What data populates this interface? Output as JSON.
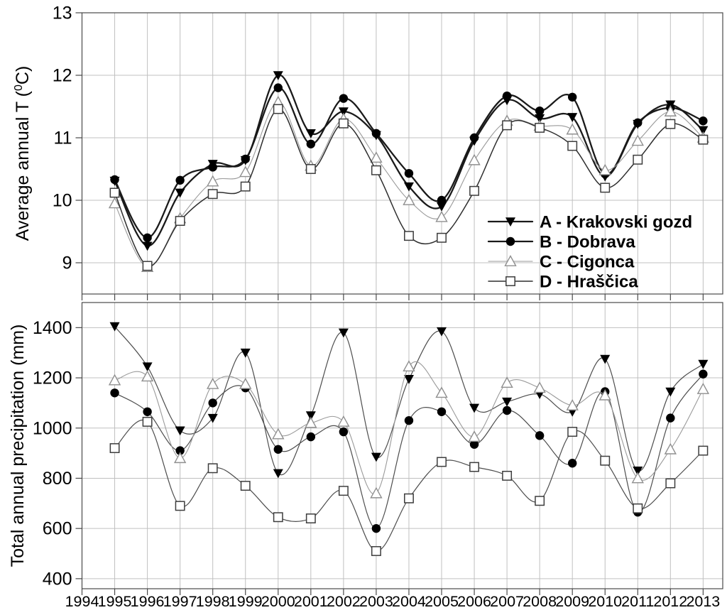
{
  "figure": {
    "description": "Two stacked climate panels: average annual temperature and total annual precipitation for four forest sites, 1995-2013",
    "colors": {
      "background": "#ffffff",
      "text": "#000000",
      "grid": "#c0c0c0",
      "frame": "#4a4a4a",
      "black_marker": "#000000",
      "thick_line": "#1a1a1a",
      "medium_line": "#2e2e2e",
      "thin_line": "#4d4d4d",
      "gray_line": "#9a9a9a",
      "open_marker_fill": "#ffffff",
      "square_stroke": "#3d3d3d",
      "triangle_open_stroke": "#8f8f8f"
    }
  },
  "legend": {
    "items": [
      {
        "key": "a",
        "label": "A - Krakovski gozd",
        "marker": "triangle-down-filled",
        "line": "thick-black"
      },
      {
        "key": "b",
        "label": "B - Dobrava",
        "marker": "circle-filled",
        "line": "thick-black"
      },
      {
        "key": "c",
        "label": "C - Cigonca",
        "marker": "triangle-up-open",
        "line": "thin-gray"
      },
      {
        "key": "d",
        "label": "D - Hraščica",
        "marker": "square-open",
        "line": "medium-black"
      }
    ]
  },
  "chart_data": [
    {
      "type": "line",
      "panel": "temperature",
      "title": "",
      "xlabel": "",
      "ylabel": "Average annual T (0C)",
      "ylabel_parts": {
        "prefix": "Average annual T (",
        "superscript": "0",
        "suffix": "C)"
      },
      "x": [
        1995,
        1996,
        1997,
        1998,
        1999,
        2000,
        2001,
        2002,
        2003,
        2004,
        2005,
        2006,
        2007,
        2008,
        2009,
        2010,
        2011,
        2012,
        2013
      ],
      "xlim": [
        1994,
        2013.6
      ],
      "ylim": [
        8.5,
        13.0
      ],
      "yticks": [
        9,
        10,
        11,
        12,
        13
      ],
      "xticks": [
        1994,
        1995,
        1996,
        1997,
        1998,
        1999,
        2000,
        2001,
        2002,
        2003,
        2004,
        2005,
        2006,
        2007,
        2008,
        2009,
        2010,
        2011,
        2012,
        2013
      ],
      "show_xtick_labels": false,
      "grid": true,
      "legend_position": "inside-right",
      "series": [
        {
          "key": "a",
          "name": "A - Krakovski gozd",
          "marker": "triangle-down-filled",
          "line": "thick-black",
          "values": [
            10.31,
            9.27,
            10.12,
            10.58,
            10.64,
            12.0,
            11.07,
            11.42,
            11.04,
            10.22,
            9.9,
            10.95,
            11.6,
            11.31,
            11.33,
            10.38,
            11.22,
            11.53,
            11.12
          ]
        },
        {
          "key": "b",
          "name": "B - Dobrava",
          "marker": "circle-filled",
          "line": "thick-black",
          "values": [
            10.33,
            9.4,
            10.32,
            10.53,
            10.66,
            11.8,
            10.9,
            11.63,
            11.07,
            10.43,
            10.0,
            11.0,
            11.67,
            11.43,
            11.65,
            10.42,
            11.24,
            11.48,
            11.27
          ]
        },
        {
          "key": "c",
          "name": "C - Cigonca",
          "marker": "triangle-up-open",
          "line": "thin-gray",
          "values": [
            9.95,
            8.93,
            9.71,
            10.3,
            10.45,
            11.57,
            10.55,
            11.3,
            10.68,
            10.0,
            9.73,
            10.64,
            11.27,
            11.19,
            11.13,
            10.48,
            10.95,
            11.42,
            11.0
          ]
        },
        {
          "key": "d",
          "name": "D - Hraščica",
          "marker": "square-open",
          "line": "medium-black",
          "values": [
            10.12,
            8.95,
            9.67,
            10.1,
            10.22,
            11.46,
            10.5,
            11.23,
            10.48,
            9.43,
            9.4,
            10.15,
            11.2,
            11.16,
            10.87,
            10.2,
            10.65,
            11.22,
            10.97
          ]
        }
      ]
    },
    {
      "type": "line",
      "panel": "precipitation",
      "title": "",
      "xlabel": "",
      "ylabel": "Total annual precipitation (mm)",
      "x": [
        1995,
        1996,
        1997,
        1998,
        1999,
        2000,
        2001,
        2002,
        2003,
        2004,
        2005,
        2006,
        2007,
        2008,
        2009,
        2010,
        2011,
        2012,
        2013
      ],
      "xlim": [
        1994,
        2013.6
      ],
      "ylim": [
        360,
        1500
      ],
      "yticks": [
        400,
        600,
        800,
        1000,
        1200,
        1400
      ],
      "xticks": [
        1994,
        1995,
        1996,
        1997,
        1998,
        1999,
        2000,
        2001,
        2002,
        2003,
        2004,
        2005,
        2006,
        2007,
        2008,
        2009,
        2010,
        2011,
        2012,
        2013
      ],
      "xtick_labels": [
        "1994",
        "1995",
        "1996",
        "1997",
        "1998",
        "1999",
        "2000",
        "2001",
        "2002",
        "2003",
        "2004",
        "2005",
        "2006",
        "2007",
        "2008",
        "2009",
        "2010",
        "2011",
        "2012",
        "2013"
      ],
      "show_xtick_labels": true,
      "grid": true,
      "legend_position": "none",
      "series": [
        {
          "key": "a",
          "name": "A - Krakovski gozd",
          "marker": "triangle-down-filled",
          "line": "thin-dark",
          "values": [
            1405,
            1245,
            990,
            1040,
            1300,
            820,
            1050,
            1380,
            885,
            1195,
            1385,
            1080,
            1105,
            1135,
            1065,
            1275,
            830,
            1145,
            1255
          ]
        },
        {
          "key": "b",
          "name": "B - Dobrava",
          "marker": "circle-filled",
          "line": "thin-dark",
          "values": [
            1140,
            1065,
            910,
            1100,
            1160,
            915,
            965,
            985,
            600,
            1030,
            1065,
            935,
            1070,
            970,
            860,
            1145,
            665,
            1040,
            1215
          ]
        },
        {
          "key": "c",
          "name": "C - Cigonca",
          "marker": "triangle-up-open",
          "line": "thin-gray",
          "values": [
            1190,
            1205,
            880,
            1175,
            1175,
            975,
            1020,
            1025,
            740,
            1245,
            1140,
            965,
            1180,
            1160,
            1090,
            1130,
            800,
            915,
            1155
          ]
        },
        {
          "key": "d",
          "name": "D - Hraščica",
          "marker": "square-open",
          "line": "thin-dark",
          "values": [
            920,
            1025,
            690,
            840,
            770,
            645,
            640,
            750,
            510,
            720,
            865,
            845,
            810,
            710,
            985,
            870,
            680,
            780,
            910
          ]
        }
      ]
    }
  ]
}
